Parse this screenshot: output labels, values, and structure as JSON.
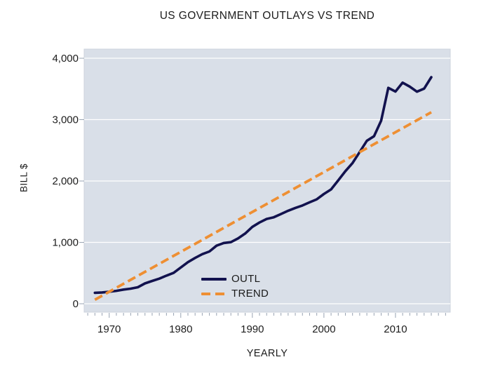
{
  "window": {
    "background": "#ffffff"
  },
  "chart_data": {
    "type": "line",
    "title": "US GOVERNMENT OUTLAYS VS TREND",
    "xlabel": "YEARLY",
    "ylabel": "BILL $",
    "x_ticks": [
      1970,
      1980,
      1990,
      2000,
      2010
    ],
    "x_minor_tick_start": 1967,
    "x_minor_tick_end": 2017,
    "y_ticks": [
      0,
      1000,
      2000,
      3000,
      4000
    ],
    "y_tick_labels": [
      "0",
      "1,000",
      "2,000",
      "3,000",
      "4,000"
    ],
    "xlim": [
      1966.5,
      2017.65
    ],
    "ylim": [
      -137,
      4149
    ],
    "grid": "horizontal white gridlines at y ticks",
    "plot_background": "#d9dfe8",
    "plot_border_color": "#cdd3dc",
    "gridline_color": "#ffffff",
    "tick_color": "#98a3b3",
    "text_color": "#1c1c1c",
    "legend": {
      "position": "inside bottom-center",
      "entries": [
        {
          "label": "OUTL",
          "color": "#12124e",
          "style": "solid"
        },
        {
          "label": "TREND",
          "color": "#ee8f33",
          "style": "dashed"
        }
      ]
    },
    "series": [
      {
        "name": "OUTL",
        "color": "#12124e",
        "style": "solid",
        "x": [
          1968,
          1969,
          1970,
          1971,
          1972,
          1973,
          1974,
          1975,
          1976,
          1977,
          1978,
          1979,
          1980,
          1981,
          1982,
          1983,
          1984,
          1985,
          1986,
          1987,
          1988,
          1989,
          1990,
          1991,
          1992,
          1993,
          1994,
          1995,
          1996,
          1997,
          1998,
          1999,
          2000,
          2001,
          2002,
          2003,
          2004,
          2005,
          2006,
          2007,
          2008,
          2009,
          2010,
          2011,
          2012,
          2013,
          2014,
          2015
        ],
        "values": [
          178,
          184,
          196,
          210,
          231,
          246,
          269,
          332,
          372,
          409,
          459,
          504,
          591,
          678,
          746,
          808,
          852,
          946,
          990,
          1004,
          1064,
          1144,
          1253,
          1324,
          1382,
          1409,
          1462,
          1516,
          1561,
          1601,
          1653,
          1702,
          1789,
          1863,
          2011,
          2160,
          2293,
          2472,
          2655,
          2729,
          2983,
          3518,
          3457,
          3603,
          3537,
          3455,
          3506,
          3692
        ]
      },
      {
        "name": "TREND",
        "color": "#ee8f33",
        "style": "dashed",
        "x": [
          1968,
          2015
        ],
        "values": [
          65,
          3120
        ]
      }
    ]
  }
}
